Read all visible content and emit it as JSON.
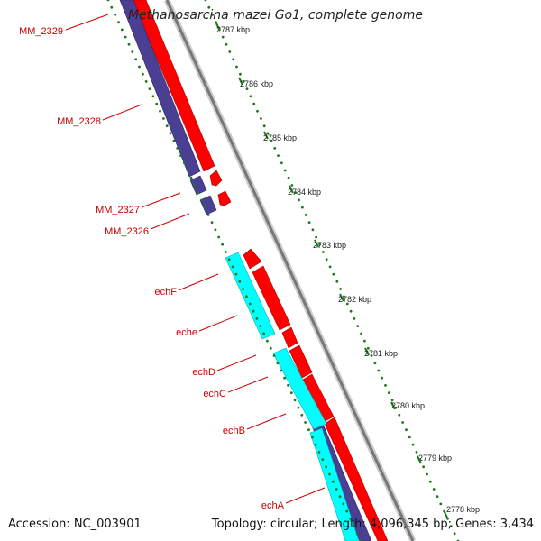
{
  "title": "Methanosarcina mazei Go1, complete genome",
  "accession": "Accession: NC_003901",
  "summary": "Topology: circular; Length: 4,096,345 bp; Genes: 3,434",
  "scale_ticks": [
    "2787 kbp",
    "2786 kbp",
    "2785 kbp",
    "2784 kbp",
    "2783 kbp",
    "2782 kbp",
    "2781 kbp",
    "2780 kbp",
    "2779 kbp",
    "2778 kbp"
  ],
  "gene_labels": [
    "MM_2329",
    "MM_2328",
    "MM_2327",
    "MM_2326",
    "echF",
    "eche",
    "echD",
    "echC",
    "echB",
    "echA"
  ],
  "colors": {
    "forward_cds": "#ff0000",
    "reverse_cds": "#4b3f94",
    "ech_operon": "#00ffff",
    "backbone": "#8a8a8a",
    "scale_dots": "#1a7a1a",
    "label_text": "#cc0000"
  }
}
